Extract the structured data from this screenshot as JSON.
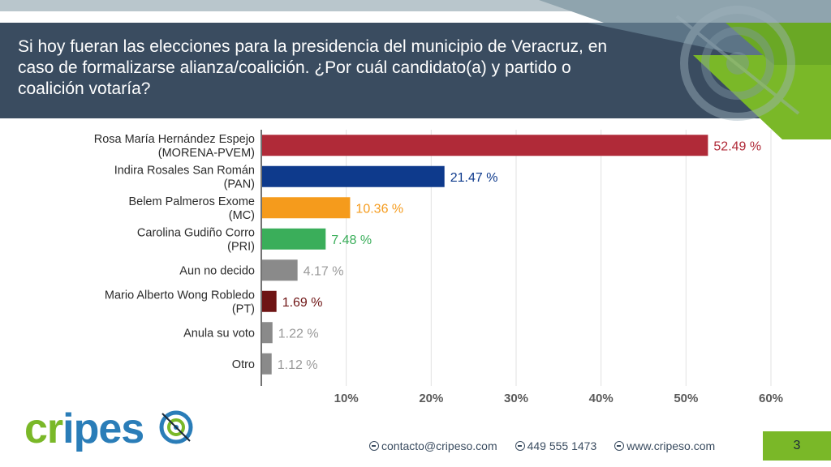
{
  "slide": {
    "title": "Si hoy fueran las elecciones para la presidencia del municipio de Veracruz, en caso de formalizarse alianza/coalición. ¿Por cuál candidato(a) y partido o coalición votaría?",
    "page_number": "3"
  },
  "logo": {
    "text_a": "cr",
    "text_b": "ipes"
  },
  "footer": {
    "email": "contacto@cripeso.com",
    "phone": "449 555 1473",
    "website": "www.cripeso.com"
  },
  "colors": {
    "title_bg": "#3a4c60",
    "accent_green": "#7ab828",
    "accent_blue": "#2a7db8"
  },
  "chart_data": {
    "type": "bar",
    "orientation": "horizontal",
    "categories": [
      [
        "Rosa María Hernández Espejo",
        "(MORENA-PVEM)"
      ],
      [
        "Indira Rosales San Román",
        "(PAN)"
      ],
      [
        "Belem Palmeros Exome",
        "(MC)"
      ],
      [
        "Carolina Gudiño Corro",
        "(PRI)"
      ],
      [
        "Aun no decido"
      ],
      [
        "Mario Alberto Wong Robledo",
        "(PT)"
      ],
      [
        "Anula su voto"
      ],
      [
        "Otro"
      ]
    ],
    "values": [
      52.49,
      21.47,
      10.36,
      7.48,
      4.17,
      1.69,
      1.22,
      1.12
    ],
    "value_labels": [
      "52.49 %",
      "21.47 %",
      "10.36 %",
      "7.48 %",
      "4.17 %",
      "1.69 %",
      "1.22 %",
      "1.12 %"
    ],
    "colors": [
      "#b02a38",
      "#0e3a8c",
      "#f59b1c",
      "#3aae5a",
      "#8a8a8a",
      "#6e1414",
      "#8a8a8a",
      "#8a8a8a"
    ],
    "label_colors": [
      "#b02a38",
      "#0e3a8c",
      "#f59b1c",
      "#3aae5a",
      "#9a9a9a",
      "#6e1414",
      "#9a9a9a",
      "#9a9a9a"
    ],
    "xticks": [
      "10%",
      "20%",
      "30%",
      "40%",
      "50%",
      "60%"
    ],
    "xtick_values": [
      10,
      20,
      30,
      40,
      50,
      60
    ],
    "xlim": [
      0,
      60
    ],
    "grid": true
  }
}
